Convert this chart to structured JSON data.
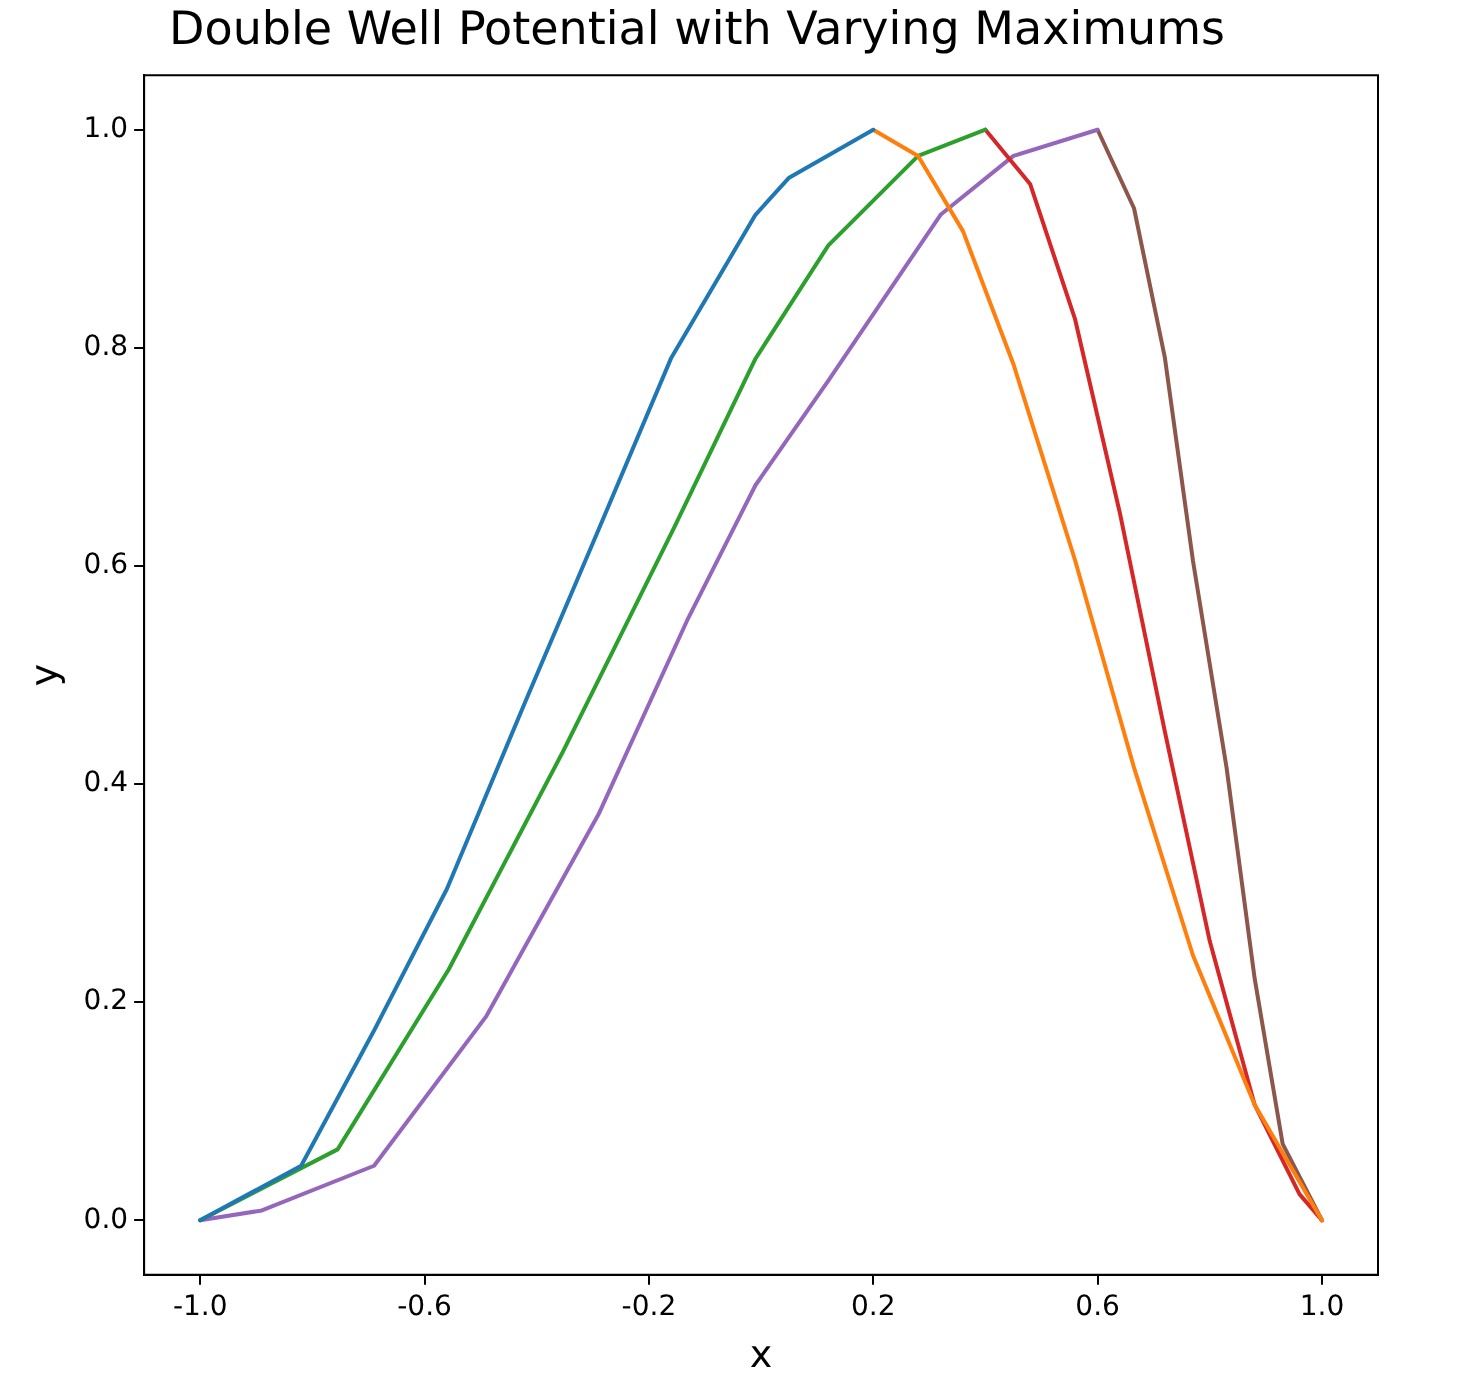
{
  "chart_data": {
    "type": "line",
    "title": "Double Well Potential with Varying Maximums",
    "xlabel": "x",
    "ylabel": "y",
    "xlim": [
      -1.1,
      1.1
    ],
    "ylim": [
      -0.05,
      1.05
    ],
    "xticks": [
      {
        "value": -1,
        "label": "-1.0"
      },
      {
        "value": -0.6,
        "label": "-0.6"
      },
      {
        "value": -0.2,
        "label": "-0.2"
      },
      {
        "value": 0.2,
        "label": "0.2"
      },
      {
        "value": 0.6,
        "label": "0.6"
      },
      {
        "value": 1,
        "label": "1.0"
      }
    ],
    "yticks": [
      {
        "value": 0,
        "label": "0.0"
      },
      {
        "value": 0.2,
        "label": "0.2"
      },
      {
        "value": 0.4,
        "label": "0.4"
      },
      {
        "value": 0.6,
        "label": "0.6"
      },
      {
        "value": 0.8,
        "label": "0.8"
      },
      {
        "value": 1,
        "label": "1.0"
      }
    ],
    "grid": false,
    "legend": false,
    "marker": "none",
    "line_style": "solid",
    "series": [
      {
        "color": "#1f77b4",
        "x": [
          -1,
          -0.82,
          -0.69,
          -0.56,
          -0.42,
          -0.29,
          -0.16,
          -0.01,
          0.05,
          0.2
        ],
        "values": [
          0,
          0.05,
          0.174,
          0.304,
          0.476,
          0.633,
          0.791,
          0.922,
          0.956,
          1
        ]
      },
      {
        "color": "#ff7f0e",
        "x": [
          0.2,
          0.28,
          0.36,
          0.45,
          0.56,
          0.665,
          0.77,
          0.88,
          1
        ],
        "values": [
          1,
          0.976,
          0.907,
          0.785,
          0.605,
          0.415,
          0.243,
          0.106,
          0
        ]
      },
      {
        "color": "#2ca02c",
        "x": [
          -1,
          -0.755,
          -0.557,
          -0.355,
          -0.157,
          -0.01,
          0.12,
          0.28,
          0.4
        ],
        "values": [
          0,
          0.065,
          0.23,
          0.428,
          0.633,
          0.79,
          0.894,
          0.976,
          1
        ]
      },
      {
        "color": "#d62728",
        "x": [
          0.4,
          0.48,
          0.56,
          0.64,
          0.72,
          0.8,
          0.88,
          0.96,
          1
        ],
        "values": [
          1,
          0.95,
          0.826,
          0.648,
          0.448,
          0.256,
          0.106,
          0.024,
          0
        ]
      },
      {
        "color": "#9467bd",
        "x": [
          -1,
          -0.89,
          -0.69,
          -0.49,
          -0.29,
          -0.13,
          -0.01,
          0.12,
          0.32,
          0.45,
          0.6
        ],
        "values": [
          0,
          0.009,
          0.05,
          0.187,
          0.372,
          0.552,
          0.674,
          0.77,
          0.922,
          0.976,
          1
        ]
      },
      {
        "color": "#8c564b",
        "x": [
          0.6,
          0.665,
          0.72,
          0.77,
          0.83,
          0.88,
          0.93,
          1
        ],
        "values": [
          1,
          0.928,
          0.791,
          0.605,
          0.415,
          0.222,
          0.07,
          0
        ]
      }
    ]
  }
}
